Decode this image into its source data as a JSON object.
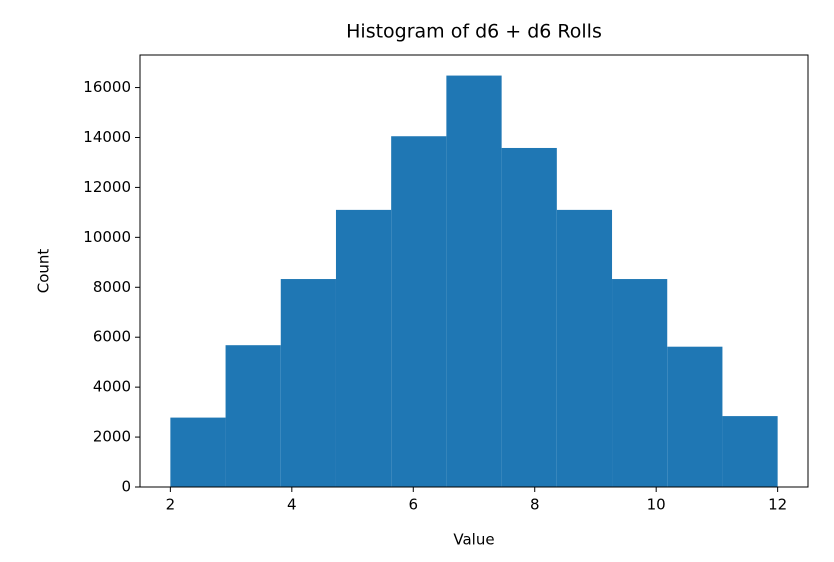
{
  "chart_data": {
    "type": "histogram",
    "title": "Histogram of d6 + d6 Rolls",
    "x_label": "Value",
    "y_label": "Count",
    "bins": [
      2,
      2.909,
      3.818,
      4.727,
      5.636,
      6.545,
      7.455,
      8.364,
      9.273,
      10.182,
      11.091,
      12
    ],
    "counts": [
      2780,
      5680,
      8330,
      11100,
      14050,
      16480,
      13580,
      11100,
      8330,
      5620,
      2840
    ],
    "color": "#1f77b4",
    "xlim": [
      1.5,
      12.5
    ],
    "xticks": [
      2,
      4,
      6,
      8,
      10,
      12
    ],
    "ylim": [
      0,
      17304
    ],
    "yticks": [
      0,
      2000,
      4000,
      6000,
      8000,
      10000,
      12000,
      14000,
      16000
    ]
  }
}
